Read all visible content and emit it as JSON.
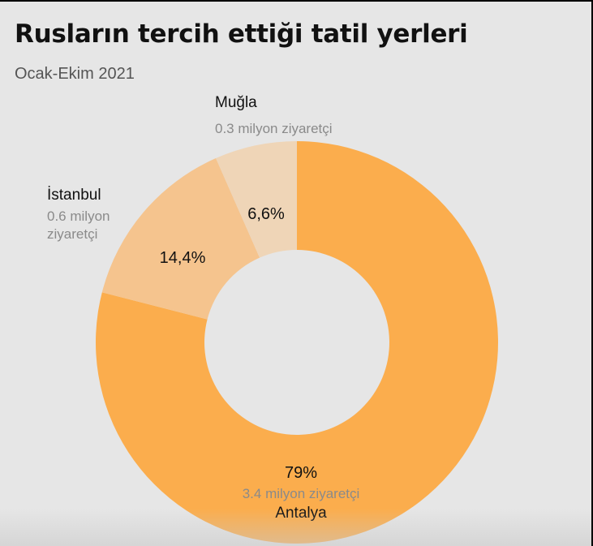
{
  "header": {
    "title": "Rusların tercih ettiği tatil yerleri",
    "subtitle": "Ocak-Ekim 2021"
  },
  "chart_data": {
    "type": "pie",
    "title": "Rusların tercih ettiği tatil yerleri",
    "subtitle": "Ocak-Ekim 2021",
    "donut": true,
    "slices": [
      {
        "name": "Antalya",
        "value": 79,
        "percent_label": "79%",
        "visitors_label": "3.4 milyon ziyaretçi",
        "color": "#fbad4d"
      },
      {
        "name": "İstanbul",
        "value": 14.4,
        "percent_label": "14,4%",
        "visitors_label": "0.6 milyon ziyaretçi",
        "visitors_label_lines": [
          "0.6 milyon",
          "ziyaretçi"
        ],
        "color": "#f5c48e"
      },
      {
        "name": "Muğla",
        "value": 6.6,
        "percent_label": "6,6%",
        "visitors_label": "0.3 milyon ziyaretçi",
        "color": "#efd5b7"
      }
    ]
  },
  "colors": {
    "background": "#e6e6e6",
    "antalya": "#fbad4d",
    "istanbul": "#f5c48e",
    "mugla": "#efd5b7"
  }
}
